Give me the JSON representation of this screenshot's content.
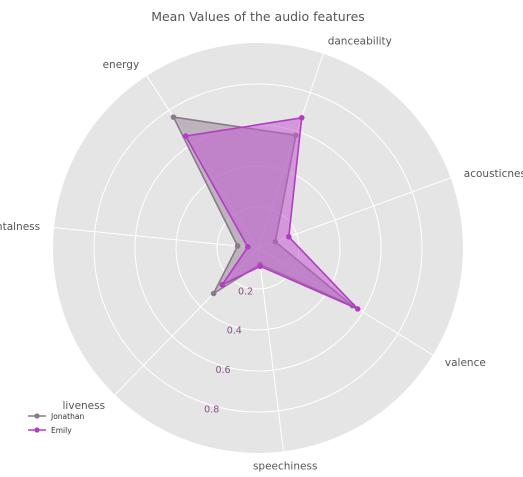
{
  "chart_data": {
    "type": "radar",
    "title": "Mean Values of the audio features",
    "axes": [
      "acousticness",
      "danceability",
      "energy",
      "instrumentalness",
      "liveness",
      "speechiness",
      "valence"
    ],
    "rlim": [
      0,
      1
    ],
    "rticks": [
      0.2,
      0.4,
      0.6,
      0.8
    ],
    "rtick_labels": [
      "0.2",
      "0.4",
      "0.6",
      "0.8"
    ],
    "grid": true,
    "legend": "bottom-left",
    "series": [
      {
        "name": "Jonathan",
        "color": "#8a7a8a",
        "fill": "#9b8a9b",
        "values": [
          0.09,
          0.58,
          0.76,
          0.1,
          0.31,
          0.08,
          0.54
        ]
      },
      {
        "name": "Emily",
        "color": "#b43cc4",
        "fill": "#c25ad2",
        "values": [
          0.16,
          0.67,
          0.65,
          0.05,
          0.25,
          0.09,
          0.57
        ]
      }
    ]
  }
}
